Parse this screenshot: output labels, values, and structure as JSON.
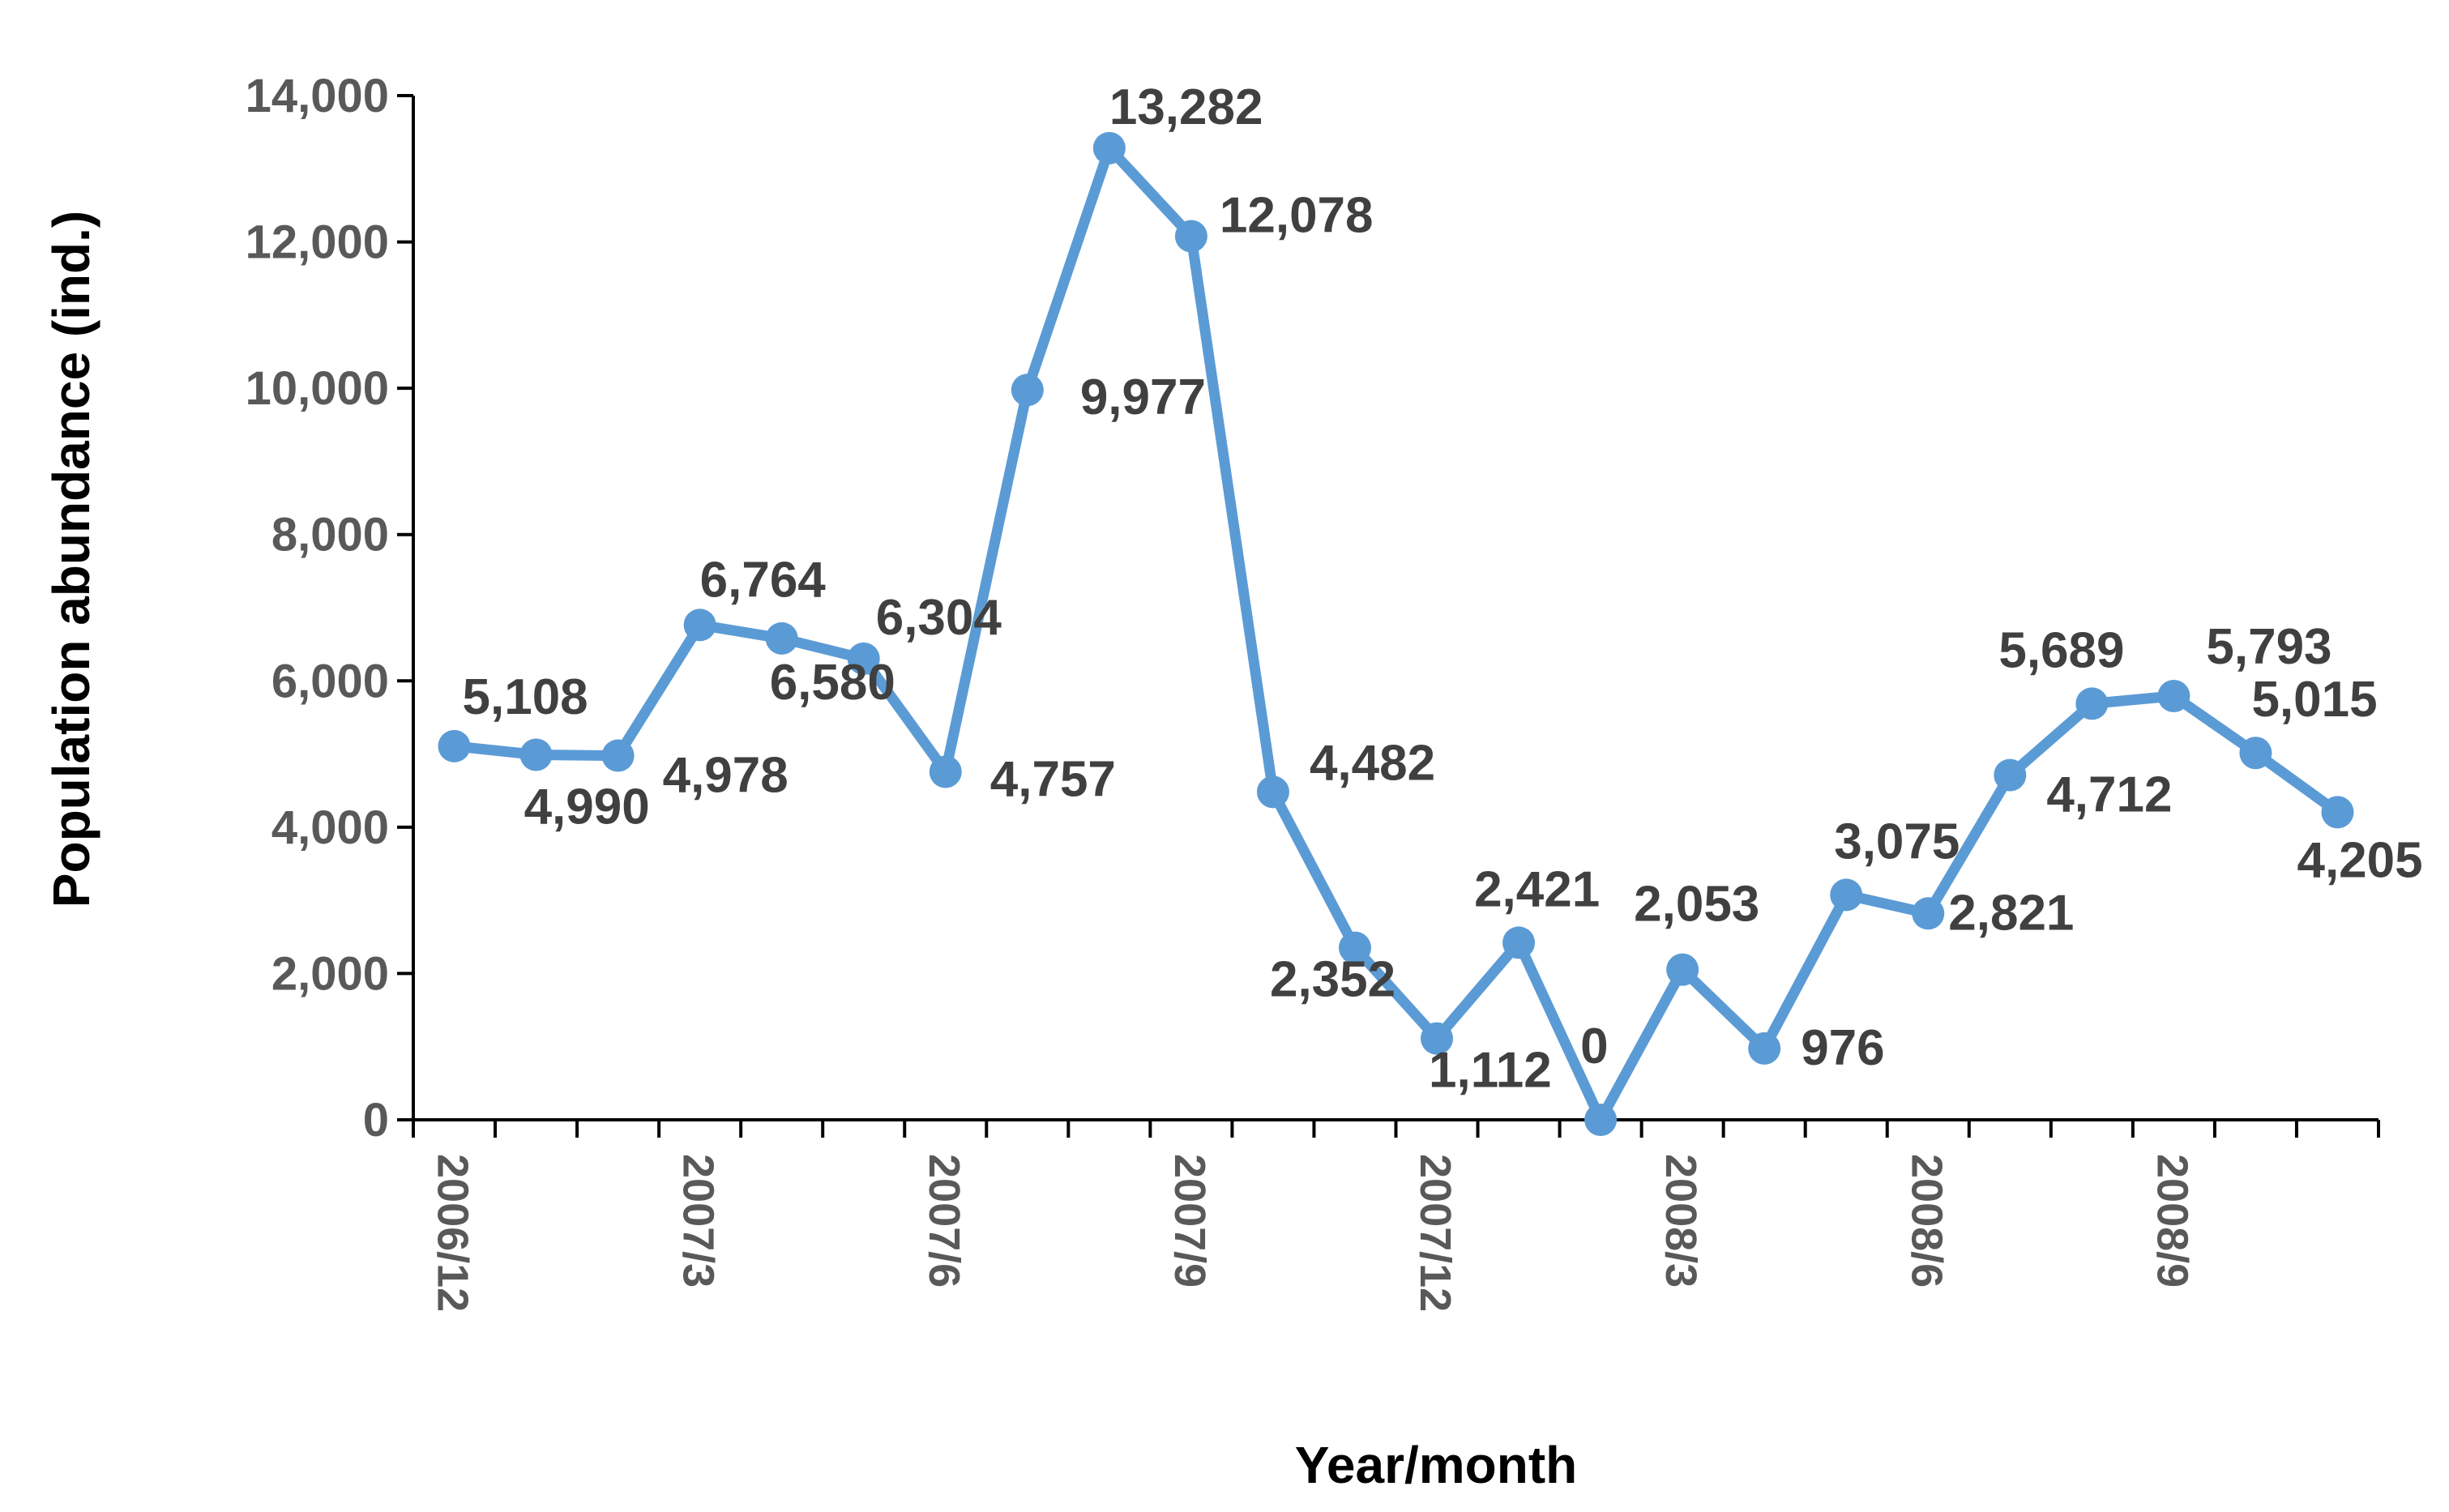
{
  "chart_data": {
    "type": "line",
    "title": "",
    "xlabel": "Year/month",
    "ylabel": "Population abundance (ind.)",
    "ylim": [
      0,
      14000
    ],
    "yticks": [
      0,
      2000,
      4000,
      6000,
      8000,
      10000,
      12000,
      14000
    ],
    "ytick_labels": [
      "0",
      "2,000",
      "4,000",
      "6,000",
      "8,000",
      "10,000",
      "12,000",
      "14,000"
    ],
    "x_tick_labels": [
      "2006/12",
      "2007/3",
      "2007/6",
      "2007/9",
      "2007/12",
      "2008/3",
      "2008/6",
      "2008/9"
    ],
    "grid": false,
    "legend": "none",
    "line_color": "#5B9BD5",
    "x": [
      "2006/12",
      "2007/1",
      "2007/2",
      "2007/3",
      "2007/4",
      "2007/5",
      "2007/6",
      "2007/7",
      "2007/8",
      "2007/9",
      "2007/10",
      "2007/11",
      "2007/12",
      "2008/1",
      "2008/2",
      "2008/3",
      "2008/4",
      "2008/5",
      "2008/6",
      "2008/7",
      "2008/8",
      "2008/9",
      "2008/10",
      "2008/11"
    ],
    "values": [
      5108,
      4990,
      4978,
      6764,
      6580,
      6304,
      4757,
      9977,
      13282,
      12078,
      4482,
      2352,
      1112,
      2421,
      0,
      2053,
      976,
      3075,
      2821,
      4712,
      5689,
      5793,
      5015,
      4205
    ],
    "data_labels": [
      "5,108",
      "4,990",
      "4,978",
      "6,764",
      "6,580",
      "6,304",
      "4,757",
      "9,977",
      "13,282",
      "12,078",
      "4,482",
      "2,352",
      "1,112",
      "2,421",
      "0",
      "2,053",
      "976",
      "3,075",
      "2,821",
      "4,712",
      "5,689",
      "5,793",
      "5,015",
      "4,205"
    ]
  }
}
